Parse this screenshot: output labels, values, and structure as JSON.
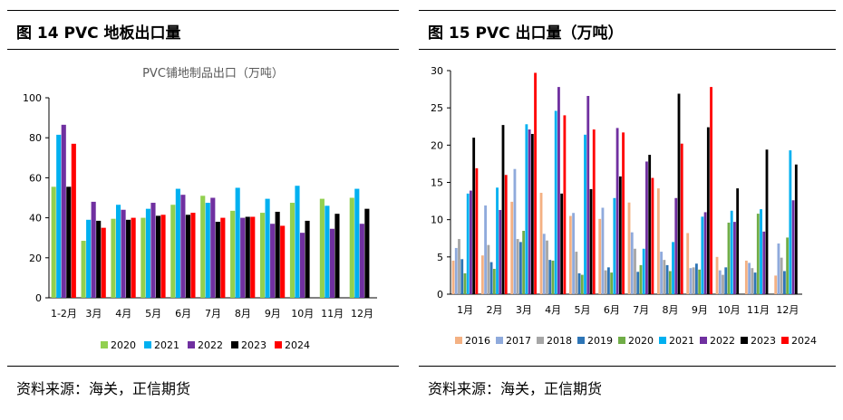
{
  "left": {
    "figure_title": "图 14 PVC 地板出口量",
    "source": "资料来源：海关，正信期货"
  },
  "right": {
    "figure_title": "图 15 PVC 出口量（万吨）",
    "source": "资料来源：海关，正信期货"
  },
  "chart_data": [
    {
      "type": "bar",
      "title": "PVC铺地制品出口（万吨）",
      "categories": [
        "1-2月",
        "3月",
        "4月",
        "5月",
        "6月",
        "7月",
        "8月",
        "9月",
        "10月",
        "11月",
        "12月"
      ],
      "ylim": [
        0,
        100
      ],
      "yticks": [
        0,
        20,
        40,
        60,
        80,
        100
      ],
      "grid": false,
      "legend": "bottom",
      "colors": [
        "#92D050",
        "#00B0F0",
        "#7030A0",
        "#000000",
        "#FF0000"
      ],
      "series": [
        {
          "name": "2020",
          "values": [
            55.5,
            28.5,
            39.5,
            40,
            46.5,
            51,
            43.5,
            42.5,
            47.5,
            49.5,
            50
          ]
        },
        {
          "name": "2021",
          "values": [
            81.5,
            39,
            46.5,
            44.5,
            54.5,
            47.5,
            55,
            49.5,
            56,
            46,
            54.5
          ]
        },
        {
          "name": "2022",
          "values": [
            86.5,
            48,
            44,
            47.5,
            51.5,
            50,
            40,
            37,
            32.5,
            34.5,
            37
          ]
        },
        {
          "name": "2023",
          "values": [
            55.5,
            38.5,
            39,
            41,
            41.5,
            38,
            40.5,
            43,
            38.5,
            42,
            44.5
          ]
        },
        {
          "name": "2024",
          "values": [
            77,
            35,
            40,
            41.5,
            42.5,
            40,
            40.5,
            36,
            null,
            null,
            null
          ]
        }
      ]
    },
    {
      "type": "bar",
      "title": "",
      "categories": [
        "1月",
        "2月",
        "3月",
        "4月",
        "5月",
        "6月",
        "7月",
        "8月",
        "9月",
        "10月",
        "11月",
        "12月"
      ],
      "ylim": [
        0,
        30
      ],
      "yticks": [
        0,
        5,
        10,
        15,
        20,
        25,
        30
      ],
      "grid": false,
      "legend": "bottom",
      "colors": [
        "#F4B183",
        "#8FAADC",
        "#A6A6A6",
        "#2E75B6",
        "#70AD47",
        "#00B0F0",
        "#7030A0",
        "#000000",
        "#FF0000"
      ],
      "series": [
        {
          "name": "2016",
          "values": [
            4.5,
            5.2,
            12.4,
            13.6,
            10.5,
            10.1,
            12.3,
            14.2,
            8.2,
            5,
            4.5,
            2.5
          ]
        },
        {
          "name": "2017",
          "values": [
            6.2,
            11.9,
            16.8,
            8.1,
            10.9,
            11.6,
            8.3,
            5.7,
            3.5,
            3.2,
            4.2,
            6.8
          ]
        },
        {
          "name": "2018",
          "values": [
            7.4,
            6.6,
            7.4,
            7.2,
            5.7,
            3.2,
            6.1,
            4.6,
            3.6,
            2.6,
            3.5,
            4.9
          ]
        },
        {
          "name": "2019",
          "values": [
            4.7,
            4.3,
            7,
            4.6,
            2.8,
            3.6,
            3,
            3.9,
            4.1,
            3.6,
            2.9,
            3.1
          ]
        },
        {
          "name": "2020",
          "values": [
            2.8,
            3.4,
            8.5,
            4.5,
            2.6,
            2.9,
            3.9,
            3.1,
            3.3,
            9.6,
            10.8,
            7.6
          ]
        },
        {
          "name": "2021",
          "values": [
            13.5,
            14.3,
            22.8,
            24.6,
            21.4,
            12.9,
            6.1,
            7,
            10.4,
            11.2,
            11.4,
            19.3
          ]
        },
        {
          "name": "2022",
          "values": [
            13.9,
            11.3,
            22.1,
            27.8,
            26.6,
            22.3,
            17.8,
            12.9,
            11,
            9.7,
            8.4,
            12.6
          ]
        },
        {
          "name": "2023",
          "values": [
            21,
            22.7,
            21.5,
            13.5,
            14.1,
            15.8,
            18.7,
            26.9,
            22.4,
            14.2,
            19.4,
            17.4
          ]
        },
        {
          "name": "2024",
          "values": [
            16.9,
            16,
            29.7,
            24,
            22.1,
            21.7,
            15.6,
            20.2,
            27.8,
            null,
            null,
            null
          ]
        }
      ]
    }
  ]
}
